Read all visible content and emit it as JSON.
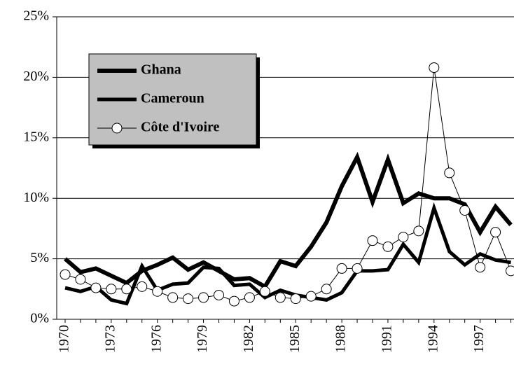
{
  "chart_data": {
    "type": "line",
    "categories": [
      "1970",
      null,
      null,
      "1973",
      null,
      null,
      "1976",
      null,
      null,
      "1979",
      null,
      null,
      "1982",
      null,
      null,
      "1985",
      null,
      null,
      "1988",
      null,
      null,
      "1991",
      null,
      null,
      "1994",
      null,
      null,
      "1997",
      null,
      null
    ],
    "series": [
      {
        "name": "Ghana",
        "color": "#000000",
        "values": [
          5.0,
          3.9,
          4.2,
          3.6,
          3.0,
          4.0,
          4.5,
          5.1,
          4.1,
          4.7,
          4.0,
          3.3,
          3.4,
          2.7,
          4.8,
          4.4,
          6.0,
          8.0,
          11.0,
          13.4,
          9.7,
          13.2,
          9.6,
          10.4,
          10.0,
          10.0,
          9.5,
          7.2,
          9.3,
          7.8
        ]
      },
      {
        "name": "Cameroun",
        "color": "#000000",
        "values": [
          2.6,
          2.3,
          2.7,
          1.6,
          1.3,
          4.4,
          2.4,
          2.9,
          3.0,
          4.3,
          4.2,
          2.8,
          2.9,
          1.8,
          2.4,
          2.0,
          1.8,
          1.6,
          2.2,
          4.0,
          4.0,
          4.1,
          6.2,
          4.7,
          9.2,
          5.6,
          4.5,
          5.4,
          4.9,
          4.7
        ]
      },
      {
        "name": "Côte d'Ivoire",
        "color": "#000000",
        "marker": "circle",
        "values": [
          3.7,
          3.3,
          2.6,
          2.5,
          2.5,
          2.7,
          2.3,
          1.8,
          1.7,
          1.8,
          2.0,
          1.5,
          1.8,
          2.3,
          1.8,
          1.7,
          1.9,
          2.5,
          4.2,
          4.2,
          6.5,
          6.0,
          6.8,
          7.3,
          20.8,
          12.1,
          9.0,
          4.3,
          7.2,
          4.0
        ]
      }
    ],
    "ylim": [
      0,
      25
    ],
    "yticks": [
      {
        "value": 0,
        "label": "0%"
      },
      {
        "value": 5,
        "label": "5%"
      },
      {
        "value": 10,
        "label": "10%"
      },
      {
        "value": 15,
        "label": "15%"
      },
      {
        "value": 20,
        "label": "20%"
      },
      {
        "value": 25,
        "label": "25%"
      }
    ],
    "grid": true,
    "legend": "upper left"
  }
}
